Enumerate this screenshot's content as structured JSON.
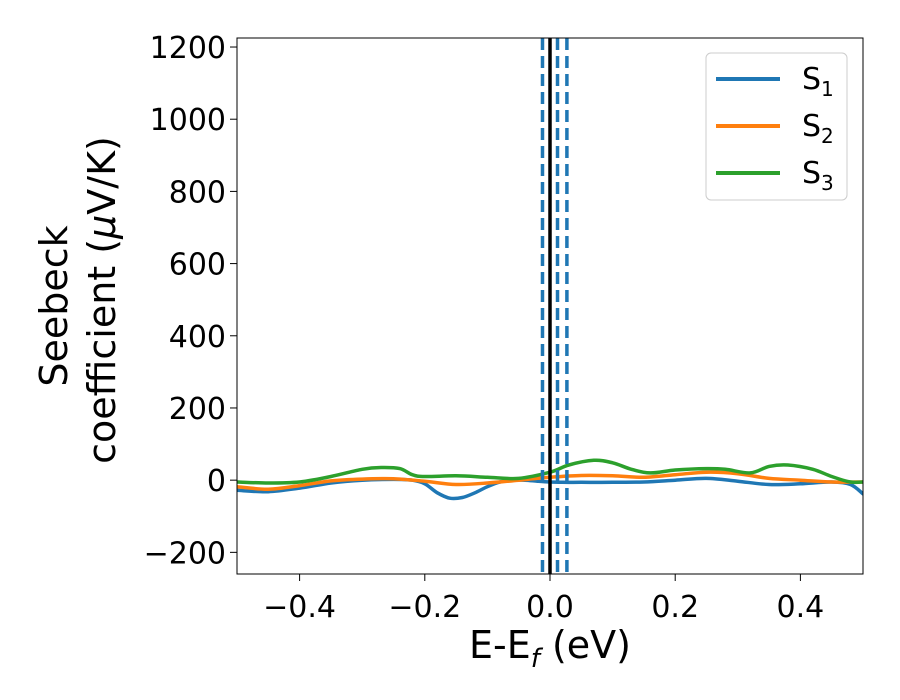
{
  "chart_data": {
    "type": "line",
    "xlabel": "E-E",
    "xlabel_sub": "f",
    "xlabel_unit": " (eV)",
    "ylabel_line1": "Seebeck",
    "ylabel_line2": "coefficient  (",
    "ylabel_mu": "μ",
    "ylabel_unit": "V/K)",
    "xlim": [
      -0.5,
      0.5
    ],
    "ylim": [
      -260,
      1225
    ],
    "xticks": [
      -0.4,
      -0.2,
      0.0,
      0.2,
      0.4
    ],
    "xtick_labels": [
      "−0.4",
      "−0.2",
      "0.0",
      "0.2",
      "0.4"
    ],
    "yticks": [
      -200,
      0,
      200,
      400,
      600,
      800,
      1000,
      1200
    ],
    "ytick_labels": [
      "−200",
      "0",
      "200",
      "400",
      "600",
      "800",
      "1000",
      "1200"
    ],
    "grid": false,
    "legend_position": "top-right",
    "vlines": [
      {
        "x": 0.0,
        "style": "solid",
        "color": "#000000"
      },
      {
        "x": -0.012,
        "style": "dashed",
        "color": "#1f77b4"
      },
      {
        "x": 0.012,
        "style": "dashed",
        "color": "#1f77b4"
      },
      {
        "x": 0.027,
        "style": "dashed",
        "color": "#1f77b4"
      }
    ],
    "series": [
      {
        "name": "S",
        "sub": "1",
        "color": "#1f77b4",
        "x": [
          -0.5,
          -0.45,
          -0.4,
          -0.35,
          -0.3,
          -0.25,
          -0.22,
          -0.2,
          -0.18,
          -0.16,
          -0.14,
          -0.12,
          -0.1,
          -0.08,
          -0.06,
          -0.04,
          -0.02,
          0.0,
          0.02,
          0.05,
          0.1,
          0.15,
          0.2,
          0.25,
          0.3,
          0.35,
          0.4,
          0.45,
          0.48,
          0.5
        ],
        "y": [
          -28,
          -32,
          -22,
          -8,
          0,
          2,
          0,
          -10,
          -35,
          -50,
          -48,
          -35,
          -18,
          -5,
          0,
          0,
          -3,
          -5,
          -6,
          -6,
          -6,
          -5,
          0,
          5,
          -3,
          -12,
          -10,
          -5,
          -12,
          -38
        ]
      },
      {
        "name": "S",
        "sub": "2",
        "color": "#ff7f0e",
        "x": [
          -0.5,
          -0.45,
          -0.4,
          -0.35,
          -0.3,
          -0.25,
          -0.2,
          -0.15,
          -0.1,
          -0.05,
          0.0,
          0.05,
          0.1,
          0.15,
          0.2,
          0.25,
          0.3,
          0.35,
          0.4,
          0.45,
          0.5
        ],
        "y": [
          -18,
          -25,
          -15,
          -2,
          3,
          4,
          -3,
          -12,
          -8,
          0,
          8,
          13,
          12,
          8,
          15,
          22,
          18,
          5,
          0,
          -5,
          -5
        ]
      },
      {
        "name": "S",
        "sub": "3",
        "color": "#2ca02c",
        "x": [
          -0.5,
          -0.45,
          -0.4,
          -0.35,
          -0.3,
          -0.27,
          -0.24,
          -0.22,
          -0.2,
          -0.15,
          -0.1,
          -0.05,
          0.0,
          0.03,
          0.07,
          0.1,
          0.13,
          0.16,
          0.2,
          0.25,
          0.28,
          0.32,
          0.35,
          0.38,
          0.42,
          0.45,
          0.48,
          0.5
        ],
        "y": [
          -5,
          -8,
          -5,
          10,
          30,
          35,
          32,
          15,
          10,
          12,
          8,
          5,
          22,
          42,
          55,
          48,
          30,
          20,
          28,
          32,
          30,
          20,
          38,
          42,
          30,
          10,
          -5,
          -5
        ]
      }
    ]
  }
}
